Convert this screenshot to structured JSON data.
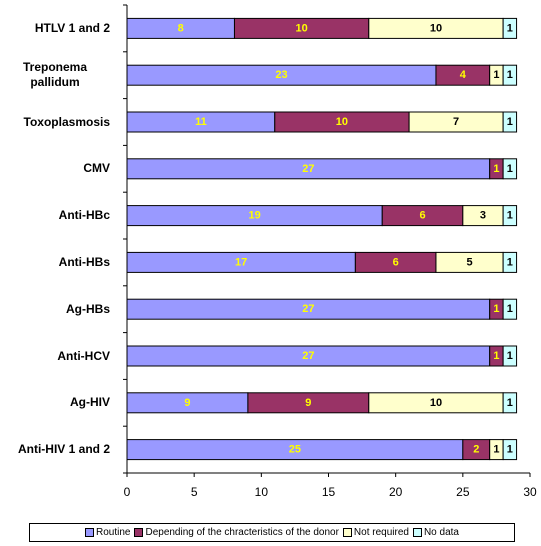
{
  "chart_data": {
    "type": "stacked_barh",
    "categories": [
      "HTLV 1 and 2",
      "Treponema pallidum",
      "Toxoplasmosis",
      "CMV",
      "Anti-HBc",
      "Anti-HBs",
      "Ag-HBs",
      "Anti-HCV",
      "Ag-HIV",
      "Anti-HIV 1 and 2"
    ],
    "series": [
      {
        "name": "Routine",
        "color": "#9999ff",
        "label_color": "#ffff00",
        "values": [
          8,
          23,
          11,
          27,
          19,
          17,
          27,
          27,
          9,
          25
        ]
      },
      {
        "name": "Depending of the chracteristics of the donor",
        "color": "#993366",
        "label_color": "#ffff00",
        "values": [
          10,
          4,
          10,
          1,
          6,
          6,
          1,
          1,
          9,
          2
        ]
      },
      {
        "name": "Not required",
        "color": "#ffffcc",
        "label_color": "#000000",
        "values": [
          10,
          1,
          7,
          0,
          3,
          5,
          0,
          0,
          10,
          1
        ]
      },
      {
        "name": "No data",
        "color": "#ccffff",
        "label_color": "#000000",
        "values": [
          1,
          1,
          1,
          1,
          1,
          1,
          1,
          1,
          1,
          1
        ]
      }
    ],
    "xlim": [
      0,
      30
    ],
    "xticks": [
      0,
      5,
      10,
      15,
      20,
      25,
      30
    ],
    "legend": "bottom"
  }
}
